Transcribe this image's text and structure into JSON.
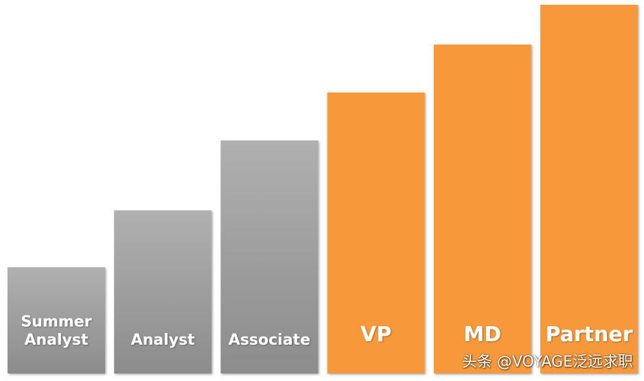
{
  "chart_data": {
    "type": "bar",
    "categories": [
      "Summer Analyst",
      "Analyst",
      "Associate",
      "VP",
      "MD",
      "Partner"
    ],
    "category_lines": [
      [
        "Summer",
        "Analyst"
      ],
      [
        "Analyst"
      ],
      [
        "Associate"
      ],
      [
        "VP"
      ],
      [
        "MD"
      ],
      [
        "Partner"
      ]
    ],
    "values": [
      155,
      238,
      340,
      410,
      480,
      538
    ],
    "title": "",
    "xlabel": "",
    "ylabel": "",
    "ylim": [
      0,
      545
    ],
    "grid": false,
    "legend": "none",
    "colors": {
      "grey_top": "#b0b0b0",
      "grey_bottom": "#8c8c8c",
      "orange": "#f7993a"
    },
    "highlighted_from_index": 3
  },
  "watermark": "头条 @VOYAGE泛远求职"
}
